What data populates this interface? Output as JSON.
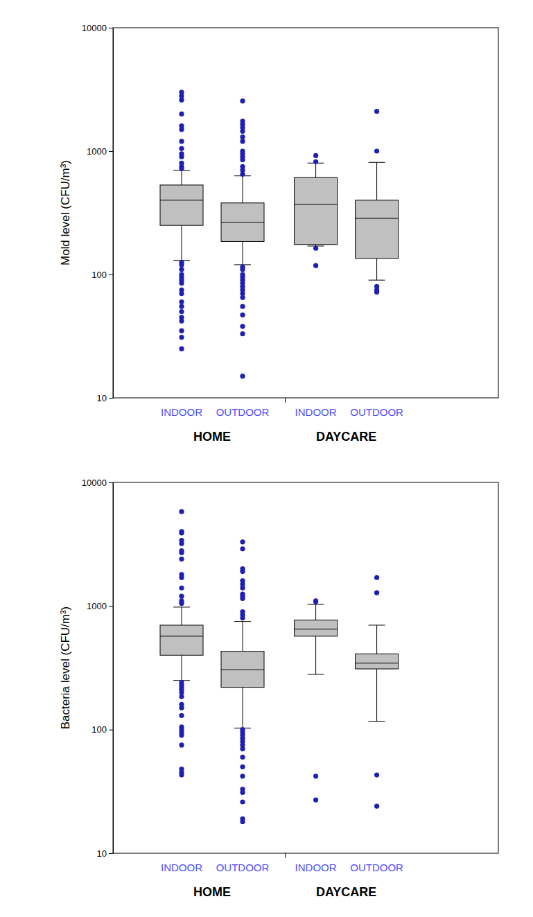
{
  "chart_data": [
    {
      "type": "box",
      "y_label": "Mold level (CFU/m³)",
      "log": "y",
      "ylim": [
        10,
        10000
      ],
      "yticks": [
        10,
        100,
        1000,
        10000
      ],
      "color": "#c0c0c0",
      "marker": "circle",
      "groups": [
        {
          "name": "HOME",
          "boxes": [
            {
              "label": "INDOOR",
              "whisker_low": 130,
              "q1": 250,
              "median": 400,
              "q3": 531,
              "whisker_high": 700,
              "outliers": [
                3000,
                2800,
                2600,
                2000,
                1600,
                1500,
                1200,
                1050,
                950,
                900,
                800,
                750,
                720,
                125,
                120,
                110,
                100,
                95,
                90,
                85,
                75,
                70,
                60,
                55,
                50,
                45,
                42,
                35,
                31,
                25
              ]
            },
            {
              "label": "OUTDOOR",
              "whisker_low": 120,
              "q1": 185,
              "median": 265,
              "q3": 380,
              "whisker_high": 630,
              "outliers": [
                2550,
                1750,
                1650,
                1550,
                1450,
                1300,
                1200,
                1000,
                950,
                900,
                850,
                750,
                700,
                650,
                115,
                110,
                100,
                95,
                90,
                85,
                80,
                75,
                70,
                65,
                55,
                47,
                38,
                33,
                15
              ]
            }
          ]
        },
        {
          "name": "DAYCARE",
          "boxes": [
            {
              "label": "INDOOR",
              "whisker_low": 170,
              "q1": 175,
              "median": 370,
              "q3": 610,
              "whisker_high": 800,
              "outliers": [
                920,
                820,
                163,
                118
              ]
            },
            {
              "label": "OUTDOOR",
              "whisker_low": 90,
              "q1": 135,
              "median": 285,
              "q3": 400,
              "whisker_high": 810,
              "outliers": [
                2100,
                1000,
                80,
                75,
                72
              ]
            }
          ]
        }
      ]
    },
    {
      "type": "box",
      "y_label": "Bacteria level (CFU/m³)",
      "log": "y",
      "ylim": [
        10,
        10000
      ],
      "yticks": [
        10,
        100,
        1000,
        10000
      ],
      "color": "#c0c0c0",
      "marker": "circle",
      "groups": [
        {
          "name": "HOME",
          "boxes": [
            {
              "label": "INDOOR",
              "whisker_low": 250,
              "q1": 400,
              "median": 570,
              "q3": 700,
              "whisker_high": 980,
              "outliers": [
                5800,
                4000,
                3900,
                3400,
                3200,
                2800,
                2700,
                2400,
                1800,
                1700,
                1400,
                1200,
                1100,
                1050,
                240,
                230,
                220,
                210,
                200,
                185,
                160,
                150,
                130,
                105,
                100,
                95,
                90,
                75,
                48,
                45,
                43
              ]
            },
            {
              "label": "OUTDOOR",
              "whisker_low": 103,
              "q1": 220,
              "median": 305,
              "q3": 430,
              "whisker_high": 750,
              "outliers": [
                3300,
                2900,
                2000,
                1900,
                1600,
                1500,
                1400,
                1250,
                1200,
                1150,
                900,
                850,
                800,
                100,
                95,
                90,
                85,
                80,
                75,
                70,
                60,
                50,
                42,
                33,
                31,
                26,
                19,
                18
              ]
            }
          ]
        },
        {
          "name": "DAYCARE",
          "boxes": [
            {
              "label": "INDOOR",
              "whisker_low": 280,
              "q1": 570,
              "median": 650,
              "q3": 770,
              "whisker_high": 1030,
              "outliers": [
                1100,
                1080,
                42,
                27
              ]
            },
            {
              "label": "OUTDOOR",
              "whisker_low": 117,
              "q1": 310,
              "median": 345,
              "q3": 410,
              "whisker_high": 700,
              "outliers": [
                1700,
                1280,
                43,
                24
              ]
            }
          ]
        }
      ]
    }
  ]
}
